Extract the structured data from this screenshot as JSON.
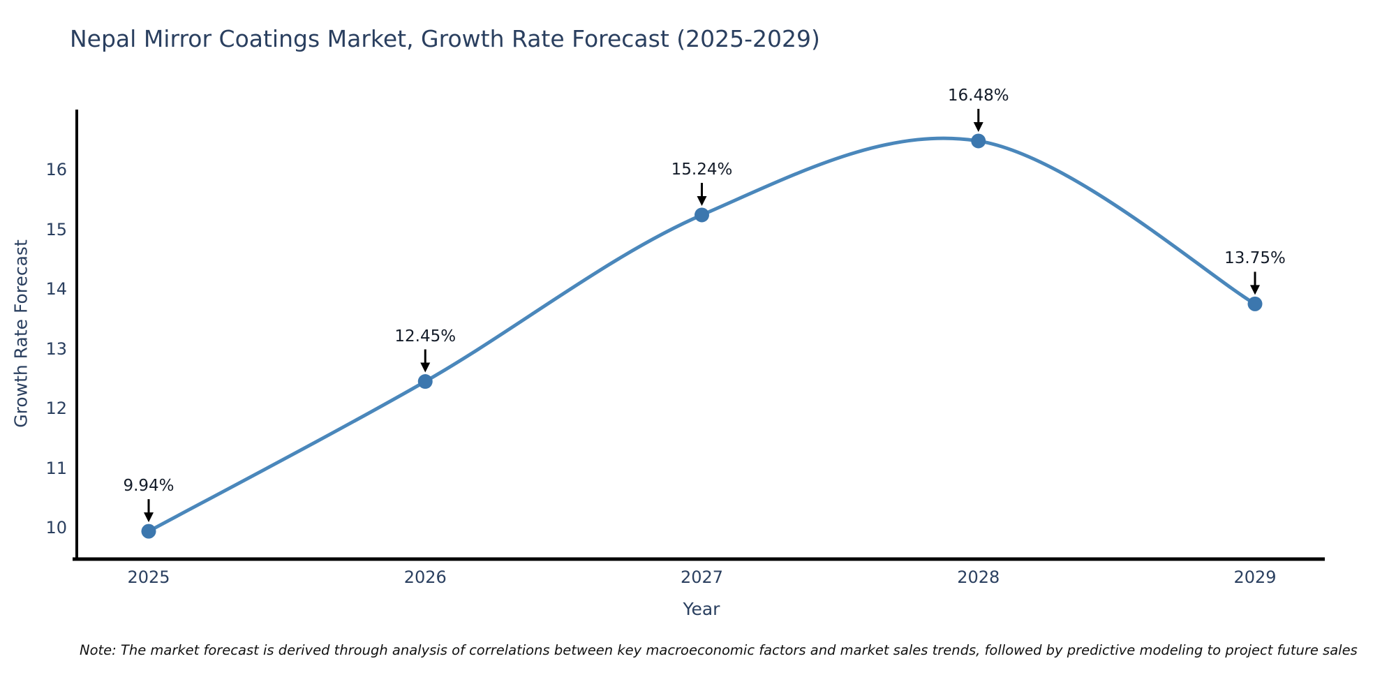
{
  "page": {
    "note": "Note: The market forecast is derived through analysis of correlations between key macroeconomic factors and market sales trends, followed by predictive modeling to project future sales"
  },
  "chart_data": {
    "type": "line",
    "title": "Nepal Mirror Coatings Market, Growth Rate Forecast (2025-2029)",
    "xlabel": "Year",
    "ylabel": "Growth Rate Forecast",
    "x": [
      2025,
      2026,
      2027,
      2028,
      2029
    ],
    "series": [
      {
        "name": "Growth Rate Forecast",
        "values": [
          9.94,
          12.45,
          15.24,
          16.48,
          13.75
        ]
      }
    ],
    "point_labels": [
      "9.94%",
      "12.45%",
      "15.24%",
      "16.48%",
      "13.75%"
    ],
    "xtick_labels": [
      "2025",
      "2026",
      "2027",
      "2028",
      "2029"
    ],
    "ytick_values": [
      10,
      11,
      12,
      13,
      14,
      15,
      16
    ],
    "ylim": [
      9.49,
      16.97
    ],
    "xlim": [
      2024.72,
      2029.27
    ],
    "grid": false,
    "legend_position": "none",
    "line_shape": "spline",
    "annotations_have_arrows": true,
    "colors": {
      "line": "#4a87bb",
      "marker": "#3c77ae",
      "axis_line": "#000000",
      "arrow": "#000000",
      "tick_text": "#2a3f5f",
      "title_text": "#2a3f5f",
      "annotation_text": "#131b28",
      "note_text": "#111111",
      "background": "#ffffff"
    }
  }
}
